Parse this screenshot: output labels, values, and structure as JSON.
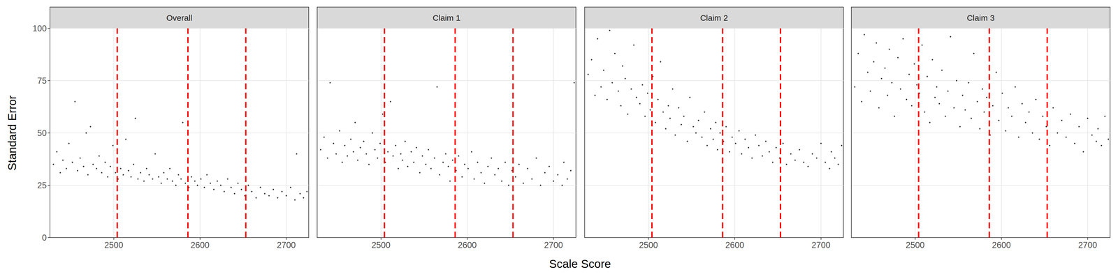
{
  "chart_data": {
    "type": "scatter",
    "x_label": "Scale Score",
    "y_label": "Standard Error",
    "xlim": [
      2426,
      2726
    ],
    "ylim": [
      0,
      100
    ],
    "xticks": [
      2500,
      2600,
      2700
    ],
    "yticks": [
      0,
      25,
      50,
      75,
      100
    ],
    "grid": true,
    "color": "#000000",
    "marker": "circle",
    "reference_lines": {
      "values": [
        2504,
        2586,
        2653
      ],
      "color": "#ff0000",
      "line_style": "dashed"
    },
    "panels": [
      {
        "title": "Overall",
        "x": [
          2430,
          2434,
          2438,
          2441,
          2445,
          2448,
          2452,
          2455,
          2458,
          2461,
          2465,
          2468,
          2470,
          2473,
          2476,
          2480,
          2483,
          2486,
          2490,
          2493,
          2496,
          2499,
          2502,
          2505,
          2508,
          2511,
          2514,
          2517,
          2520,
          2523,
          2525,
          2528,
          2531,
          2535,
          2538,
          2541,
          2545,
          2548,
          2552,
          2555,
          2558,
          2562,
          2565,
          2568,
          2572,
          2575,
          2578,
          2580,
          2583,
          2587,
          2590,
          2594,
          2597,
          2601,
          2605,
          2608,
          2612,
          2616,
          2620,
          2624,
          2628,
          2632,
          2636,
          2640,
          2644,
          2648,
          2652,
          2656,
          2660,
          2665,
          2670,
          2675,
          2680,
          2685,
          2690,
          2695,
          2700,
          2705,
          2710,
          2712,
          2716,
          2720,
          2724
        ],
        "values": [
          35,
          41,
          31,
          37,
          33,
          45,
          36,
          65,
          32,
          38,
          34,
          50,
          30,
          53,
          35,
          33,
          39,
          31,
          36,
          29,
          34,
          44,
          31,
          28,
          33,
          30,
          47,
          32,
          29,
          35,
          57,
          28,
          31,
          27,
          33,
          30,
          28,
          40,
          29,
          26,
          31,
          28,
          33,
          27,
          25,
          30,
          28,
          55,
          26,
          24,
          29,
          27,
          25,
          28,
          24,
          30,
          26,
          23,
          27,
          25,
          22,
          28,
          24,
          21,
          26,
          23,
          20,
          25,
          22,
          19,
          24,
          21,
          20,
          23,
          19,
          22,
          20,
          24,
          18,
          40,
          21,
          19,
          22
        ]
      },
      {
        "title": "Claim 1",
        "x": [
          2430,
          2434,
          2438,
          2441,
          2445,
          2448,
          2452,
          2455,
          2458,
          2461,
          2465,
          2468,
          2470,
          2473,
          2476,
          2480,
          2483,
          2486,
          2490,
          2493,
          2496,
          2499,
          2502,
          2505,
          2508,
          2511,
          2514,
          2517,
          2520,
          2523,
          2525,
          2528,
          2531,
          2535,
          2538,
          2541,
          2545,
          2548,
          2552,
          2555,
          2558,
          2562,
          2565,
          2568,
          2572,
          2575,
          2578,
          2580,
          2583,
          2587,
          2590,
          2594,
          2597,
          2601,
          2605,
          2608,
          2612,
          2616,
          2620,
          2624,
          2628,
          2632,
          2636,
          2640,
          2644,
          2648,
          2652,
          2656,
          2660,
          2665,
          2670,
          2675,
          2680,
          2685,
          2690,
          2695,
          2700,
          2705,
          2710,
          2712,
          2716,
          2720,
          2724
        ],
        "values": [
          42,
          48,
          38,
          74,
          45,
          40,
          51,
          36,
          44,
          39,
          47,
          41,
          55,
          37,
          43,
          46,
          40,
          35,
          50,
          42,
          38,
          45,
          59,
          36,
          41,
          65,
          39,
          44,
          33,
          40,
          37,
          46,
          34,
          41,
          36,
          43,
          31,
          39,
          35,
          42,
          33,
          38,
          72,
          30,
          36,
          40,
          34,
          27,
          37,
          32,
          39,
          29,
          35,
          33,
          41,
          28,
          36,
          31,
          26,
          34,
          38,
          30,
          33,
          27,
          36,
          25,
          32,
          29,
          35,
          26,
          33,
          28,
          38,
          25,
          31,
          34,
          27,
          30,
          25,
          36,
          28,
          32,
          74
        ]
      },
      {
        "title": "Claim 2",
        "x": [
          2430,
          2434,
          2438,
          2441,
          2445,
          2448,
          2452,
          2455,
          2458,
          2461,
          2465,
          2468,
          2470,
          2473,
          2476,
          2480,
          2483,
          2486,
          2490,
          2493,
          2496,
          2499,
          2502,
          2505,
          2508,
          2511,
          2514,
          2517,
          2520,
          2523,
          2525,
          2528,
          2531,
          2535,
          2538,
          2541,
          2545,
          2548,
          2552,
          2555,
          2558,
          2562,
          2565,
          2568,
          2572,
          2575,
          2578,
          2580,
          2583,
          2587,
          2590,
          2594,
          2597,
          2601,
          2605,
          2608,
          2612,
          2616,
          2620,
          2624,
          2628,
          2632,
          2636,
          2640,
          2644,
          2648,
          2652,
          2656,
          2660,
          2665,
          2670,
          2675,
          2680,
          2685,
          2690,
          2695,
          2700,
          2705,
          2710,
          2712,
          2716,
          2720,
          2724
        ],
        "values": [
          78,
          85,
          68,
          95,
          72,
          80,
          66,
          99,
          74,
          88,
          70,
          63,
          82,
          76,
          59,
          71,
          92,
          67,
          64,
          73,
          58,
          69,
          61,
          77,
          55,
          66,
          84,
          60,
          52,
          63,
          57,
          71,
          49,
          62,
          54,
          58,
          46,
          67,
          53,
          50,
          56,
          48,
          60,
          44,
          52,
          47,
          55,
          42,
          50,
          46,
          53,
          41,
          48,
          45,
          51,
          40,
          47,
          43,
          38,
          49,
          44,
          39,
          46,
          41,
          36,
          43,
          38,
          45,
          35,
          40,
          37,
          42,
          36,
          34,
          40,
          38,
          45,
          36,
          33,
          41,
          38,
          35,
          44
        ]
      },
      {
        "title": "Claim 3",
        "x": [
          2430,
          2434,
          2438,
          2441,
          2445,
          2448,
          2452,
          2455,
          2458,
          2461,
          2465,
          2468,
          2470,
          2473,
          2476,
          2480,
          2483,
          2486,
          2490,
          2493,
          2496,
          2499,
          2502,
          2505,
          2508,
          2511,
          2514,
          2517,
          2520,
          2523,
          2525,
          2528,
          2531,
          2535,
          2538,
          2541,
          2545,
          2548,
          2552,
          2555,
          2558,
          2562,
          2565,
          2568,
          2572,
          2575,
          2578,
          2580,
          2583,
          2587,
          2590,
          2594,
          2597,
          2601,
          2605,
          2608,
          2612,
          2616,
          2620,
          2624,
          2628,
          2632,
          2636,
          2640,
          2644,
          2648,
          2652,
          2656,
          2660,
          2665,
          2670,
          2675,
          2680,
          2685,
          2690,
          2695,
          2700,
          2705,
          2710,
          2712,
          2716,
          2720,
          2724
        ],
        "values": [
          72,
          88,
          65,
          97,
          79,
          70,
          84,
          93,
          62,
          76,
          81,
          68,
          90,
          74,
          58,
          86,
          71,
          95,
          66,
          78,
          63,
          83,
          73,
          69,
          92,
          60,
          77,
          55,
          85,
          67,
          72,
          64,
          80,
          58,
          70,
          96,
          62,
          75,
          53,
          68,
          61,
          74,
          57,
          88,
          65,
          52,
          71,
          60,
          67,
          49,
          63,
          79,
          56,
          69,
          51,
          62,
          58,
          72,
          48,
          64,
          55,
          60,
          50,
          66,
          47,
          58,
          53,
          44,
          62,
          50,
          56,
          48,
          59,
          45,
          53,
          41,
          57,
          49,
          46,
          52,
          44,
          58,
          47
        ]
      }
    ]
  }
}
